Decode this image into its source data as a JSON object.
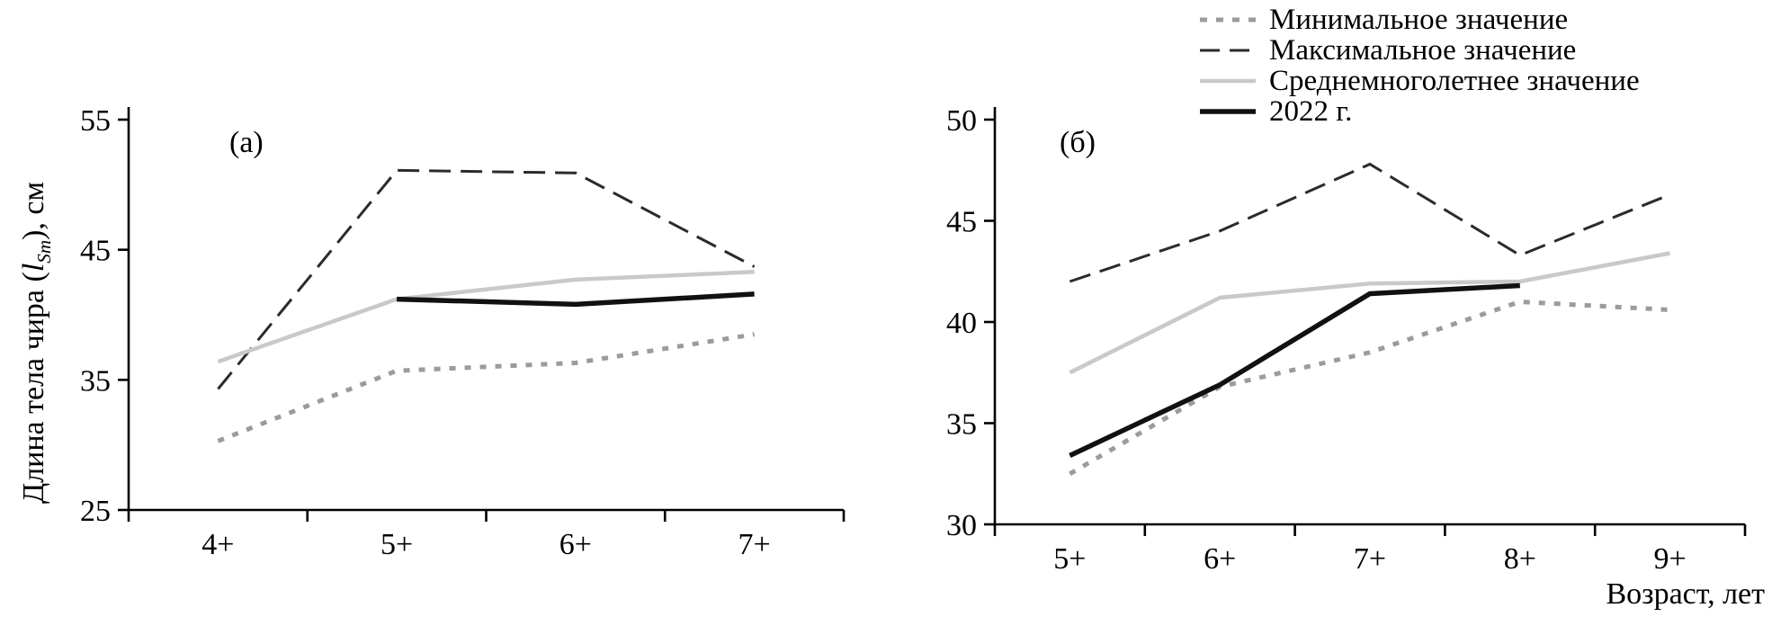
{
  "figure": {
    "ylabel": {
      "prefix": "Длина тела чира (",
      "var": "l",
      "sub": "Sm",
      "suffix": "), см"
    },
    "xlabel": "Возраст, лет"
  },
  "legend": [
    {
      "key": "min",
      "label": "Минимальное значение"
    },
    {
      "key": "max",
      "label": "Максимальное значение"
    },
    {
      "key": "avg",
      "label": "Среднемноголетнее значение"
    },
    {
      "key": "y2022",
      "label": "2022 г."
    }
  ],
  "series_styles": {
    "min": {
      "color": "#9b9b9b",
      "style": "dotted",
      "width": 5
    },
    "max": {
      "color": "#2b2b2b",
      "style": "dashed",
      "width": 3
    },
    "avg": {
      "color": "#c9c9c9",
      "style": "solid",
      "width": 4.5
    },
    "y2022": {
      "color": "#111111",
      "style": "solid",
      "width": 5.5
    }
  },
  "chart_data": [
    {
      "type": "line",
      "panel_label": "(а)",
      "categories": [
        "4+",
        "5+",
        "6+",
        "7+"
      ],
      "ylim": [
        25,
        55
      ],
      "yticks": [
        25,
        35,
        45,
        55
      ],
      "xlabel": "Возраст, лет",
      "ylabel": "Длина тела чира (lSm), см",
      "legend_position": "top-right",
      "grid": false,
      "series": [
        {
          "name": "Минимальное значение",
          "key": "min",
          "values": [
            30.3,
            35.7,
            36.3,
            38.5
          ]
        },
        {
          "name": "Максимальное значение",
          "key": "max",
          "values": [
            34.3,
            51.1,
            50.9,
            43.7
          ]
        },
        {
          "name": "Среднемноголетнее значение",
          "key": "avg",
          "values": [
            36.4,
            41.2,
            42.7,
            43.3
          ]
        },
        {
          "name": "2022 г.",
          "key": "y2022",
          "values": [
            null,
            41.2,
            40.8,
            41.6
          ]
        }
      ]
    },
    {
      "type": "line",
      "panel_label": "(б)",
      "categories": [
        "5+",
        "6+",
        "7+",
        "8+",
        "9+"
      ],
      "ylim": [
        30,
        50
      ],
      "yticks": [
        30,
        35,
        40,
        45,
        50
      ],
      "xlabel": "Возраст, лет",
      "ylabel": "Длина тела чира (lSm), см",
      "legend_position": "top-right",
      "grid": false,
      "series": [
        {
          "name": "Минимальное значение",
          "key": "min",
          "values": [
            32.5,
            36.8,
            38.5,
            41.0,
            40.6
          ]
        },
        {
          "name": "Максимальное значение",
          "key": "max",
          "values": [
            42.0,
            44.5,
            47.8,
            43.3,
            46.3
          ]
        },
        {
          "name": "Среднемноголетнее значение",
          "key": "avg",
          "values": [
            37.5,
            41.2,
            41.9,
            42.0,
            43.4
          ]
        },
        {
          "name": "2022 г.",
          "key": "y2022",
          "values": [
            33.4,
            36.9,
            41.4,
            41.8,
            null
          ]
        }
      ]
    }
  ]
}
